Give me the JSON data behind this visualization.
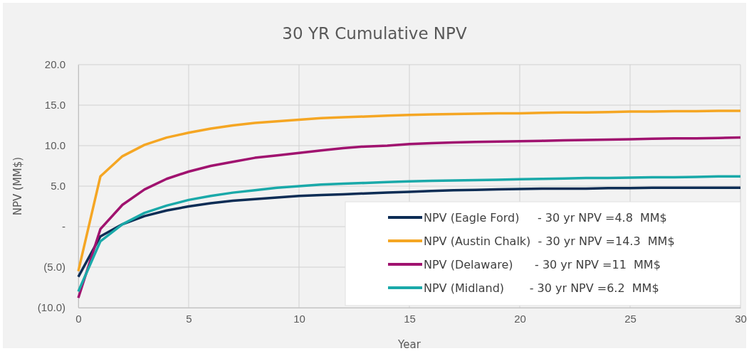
{
  "chart_data": {
    "type": "line",
    "title": "30 YR Cumulative NPV",
    "xlabel": "Year",
    "ylabel": "NPV (MM$)",
    "x": [
      0,
      1,
      2,
      3,
      4,
      5,
      6,
      7,
      8,
      9,
      10,
      11,
      12,
      13,
      14,
      15,
      16,
      17,
      18,
      19,
      20,
      21,
      22,
      23,
      24,
      25,
      26,
      27,
      28,
      29,
      30
    ],
    "xlim": [
      0,
      30
    ],
    "xticks": [
      0,
      5,
      10,
      15,
      20,
      25,
      30
    ],
    "ylim": [
      -10,
      20
    ],
    "yticks": [
      {
        "value": -10,
        "label": "(10.0)"
      },
      {
        "value": -5,
        "label": "(5.0)"
      },
      {
        "value": 0,
        "label": "-"
      },
      {
        "value": 5,
        "label": "5.0"
      },
      {
        "value": 10,
        "label": "10.0"
      },
      {
        "value": 15,
        "label": "15.0"
      },
      {
        "value": 20,
        "label": "20.0"
      }
    ],
    "grid": true,
    "legend": "bottom right",
    "line_style": "solid",
    "marker": "none",
    "series": [
      {
        "name": "NPV (Eagle Ford)     - 30 yr NPV =4.8  MM$",
        "color": "#0d2d55",
        "values": [
          -6.2,
          -1.2,
          0.3,
          1.3,
          2.0,
          2.5,
          2.9,
          3.2,
          3.4,
          3.6,
          3.8,
          3.9,
          4.0,
          4.1,
          4.2,
          4.3,
          4.4,
          4.5,
          4.55,
          4.6,
          4.65,
          4.7,
          4.7,
          4.7,
          4.75,
          4.75,
          4.8,
          4.8,
          4.8,
          4.8,
          4.8
        ]
      },
      {
        "name": "NPV (Austin Chalk)  - 30 yr NPV =14.3  MM$",
        "color": "#f5a623",
        "values": [
          -5.5,
          6.2,
          8.7,
          10.1,
          11.0,
          11.6,
          12.1,
          12.5,
          12.8,
          13.0,
          13.2,
          13.4,
          13.5,
          13.6,
          13.7,
          13.8,
          13.85,
          13.9,
          13.95,
          14.0,
          14.0,
          14.05,
          14.1,
          14.1,
          14.15,
          14.2,
          14.2,
          14.25,
          14.25,
          14.3,
          14.3
        ]
      },
      {
        "name": "NPV (Delaware)      - 30 yr NPV =11  MM$",
        "color": "#a0126f",
        "values": [
          -8.8,
          -0.3,
          2.7,
          4.6,
          5.9,
          6.8,
          7.5,
          8.0,
          8.5,
          8.8,
          9.1,
          9.4,
          9.7,
          9.9,
          10.0,
          10.2,
          10.3,
          10.4,
          10.45,
          10.5,
          10.55,
          10.6,
          10.65,
          10.7,
          10.75,
          10.8,
          10.85,
          10.9,
          10.9,
          10.95,
          11.0
        ]
      },
      {
        "name": "NPV (Midland)       - 30 yr NPV =6.2  MM$",
        "color": "#1aa9a9",
        "values": [
          -8.0,
          -1.8,
          0.3,
          1.7,
          2.6,
          3.3,
          3.8,
          4.2,
          4.5,
          4.8,
          5.0,
          5.2,
          5.3,
          5.4,
          5.5,
          5.6,
          5.65,
          5.7,
          5.75,
          5.8,
          5.85,
          5.9,
          5.95,
          6.0,
          6.0,
          6.05,
          6.1,
          6.1,
          6.15,
          6.2,
          6.2
        ]
      }
    ]
  }
}
